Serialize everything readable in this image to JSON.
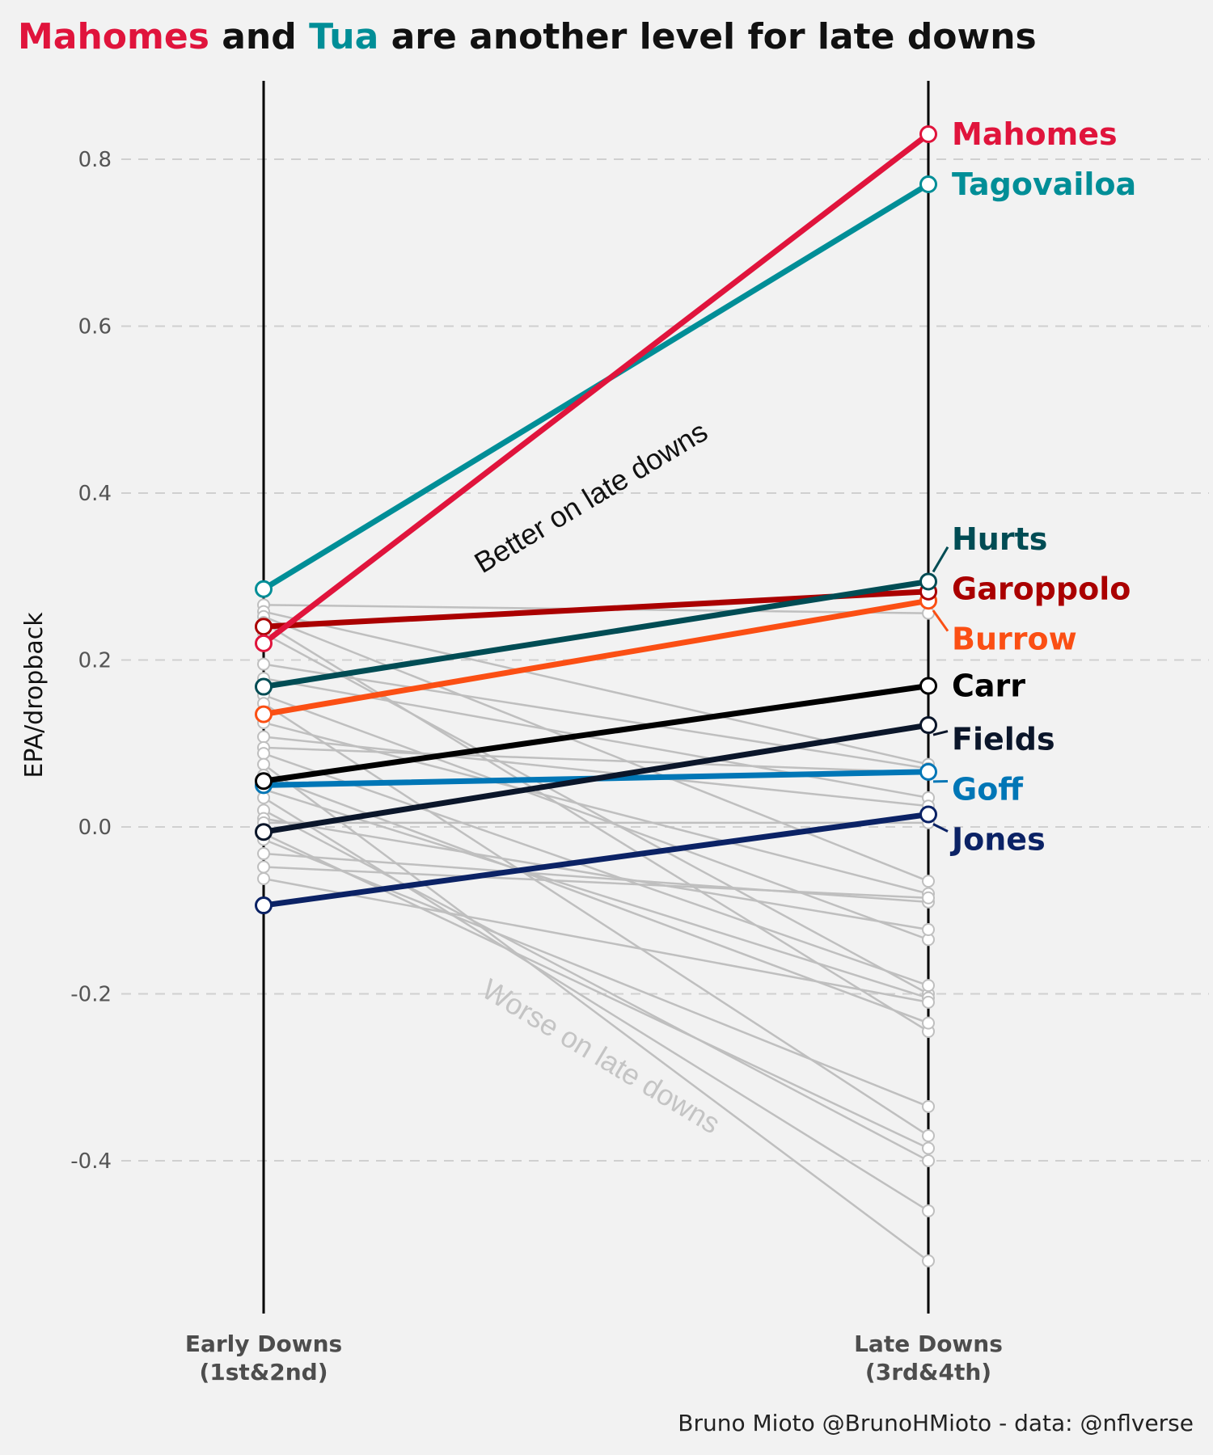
{
  "chart_data": {
    "type": "line",
    "chart_kind": "slope",
    "title": {
      "segments": [
        {
          "text": "Mahomes",
          "color": "#e0143c"
        },
        {
          "text": " and ",
          "color": "#111111"
        },
        {
          "text": "Tua",
          "color": "#008e97"
        },
        {
          "text": " are another level for late downs",
          "color": "#111111"
        }
      ]
    },
    "caption": "Bruno Mioto @BrunoHMioto - data: @nflverse",
    "ylabel": "EPA/dropback",
    "ylim": [
      -0.58,
      0.9
    ],
    "yticks": [
      0.8,
      0.6,
      0.4,
      0.2,
      0.0,
      -0.2,
      -0.4
    ],
    "ytick_labels": [
      "0.8",
      "0.6",
      "0.4",
      "0.2",
      "0.0",
      "-0.2",
      "-0.4"
    ],
    "grid": "horizontal dashed",
    "categories": [
      {
        "line1": "Early Downs",
        "line2": "(1st&2nd)"
      },
      {
        "line1": "Late Downs",
        "line2": "(3rd&4th)"
      }
    ],
    "annotations": [
      {
        "text": "Better on late downs",
        "color": "#111111",
        "at": [
          0.5,
          0.385
        ],
        "angle": -31
      },
      {
        "text": "Worse on late downs",
        "color": "#c4c4c4",
        "at": [
          0.5,
          -0.285
        ],
        "angle": 31
      }
    ],
    "highlighted_series": [
      {
        "name": "Mahomes",
        "values": [
          0.22,
          0.83
        ],
        "color": "#e0143c"
      },
      {
        "name": "Tagovailoa",
        "values": [
          0.285,
          0.77
        ],
        "color": "#008e97"
      },
      {
        "name": "Hurts",
        "values": [
          0.168,
          0.294
        ],
        "color": "#004c54",
        "label_value": 0.345
      },
      {
        "name": "Garoppolo",
        "values": [
          0.24,
          0.282
        ],
        "color": "#aa0000",
        "label_value": 0.285
      },
      {
        "name": "Burrow",
        "values": [
          0.135,
          0.271
        ],
        "color": "#fb4f14",
        "label_value": 0.225
      },
      {
        "name": "Carr",
        "values": [
          0.055,
          0.169
        ],
        "color": "#000000"
      },
      {
        "name": "Fields",
        "values": [
          -0.006,
          0.122
        ],
        "color": "#0b162a",
        "label_value": 0.105
      },
      {
        "name": "Goff",
        "values": [
          0.05,
          0.066
        ],
        "color": "#0076b6",
        "label_value": 0.045
      },
      {
        "name": "Jones",
        "values": [
          -0.094,
          0.015
        ],
        "color": "#0b2265",
        "label_value": -0.015
      }
    ],
    "background_series": [
      {
        "values": [
          0.266,
          0.256
        ]
      },
      {
        "values": [
          0.258,
          0.075
        ]
      },
      {
        "values": [
          0.252,
          -0.065
        ]
      },
      {
        "values": [
          0.245,
          -0.245
        ]
      },
      {
        "values": [
          0.232,
          -0.2
        ]
      },
      {
        "values": [
          0.195,
          0.07
        ]
      },
      {
        "values": [
          0.178,
          0.035
        ]
      },
      {
        "values": [
          0.158,
          -0.135
        ]
      },
      {
        "values": [
          0.148,
          -0.37
        ]
      },
      {
        "values": [
          0.125,
          -0.08
        ]
      },
      {
        "values": [
          0.108,
          0.025
        ]
      },
      {
        "values": [
          0.095,
          0.065
        ]
      },
      {
        "values": [
          0.088,
          -0.19
        ]
      },
      {
        "values": [
          0.075,
          -0.52
        ]
      },
      {
        "values": [
          0.062,
          -0.235
        ]
      },
      {
        "values": [
          0.045,
          -0.205
        ]
      },
      {
        "values": [
          0.035,
          -0.46
        ]
      },
      {
        "values": [
          0.02,
          -0.4
        ]
      },
      {
        "values": [
          0.01,
          -0.123
        ]
      },
      {
        "values": [
          0.005,
          0.005
        ]
      },
      {
        "values": [
          -0.008,
          -0.385
        ]
      },
      {
        "values": [
          -0.015,
          -0.335
        ]
      },
      {
        "values": [
          -0.032,
          -0.09
        ]
      },
      {
        "values": [
          -0.048,
          -0.085
        ]
      },
      {
        "values": [
          -0.062,
          -0.21
        ]
      }
    ],
    "styles": {
      "background_line": "#bfbfbf",
      "point_fill": "#ffffff",
      "axis_line": "#000000",
      "grid": "#d0d0d0"
    }
  }
}
